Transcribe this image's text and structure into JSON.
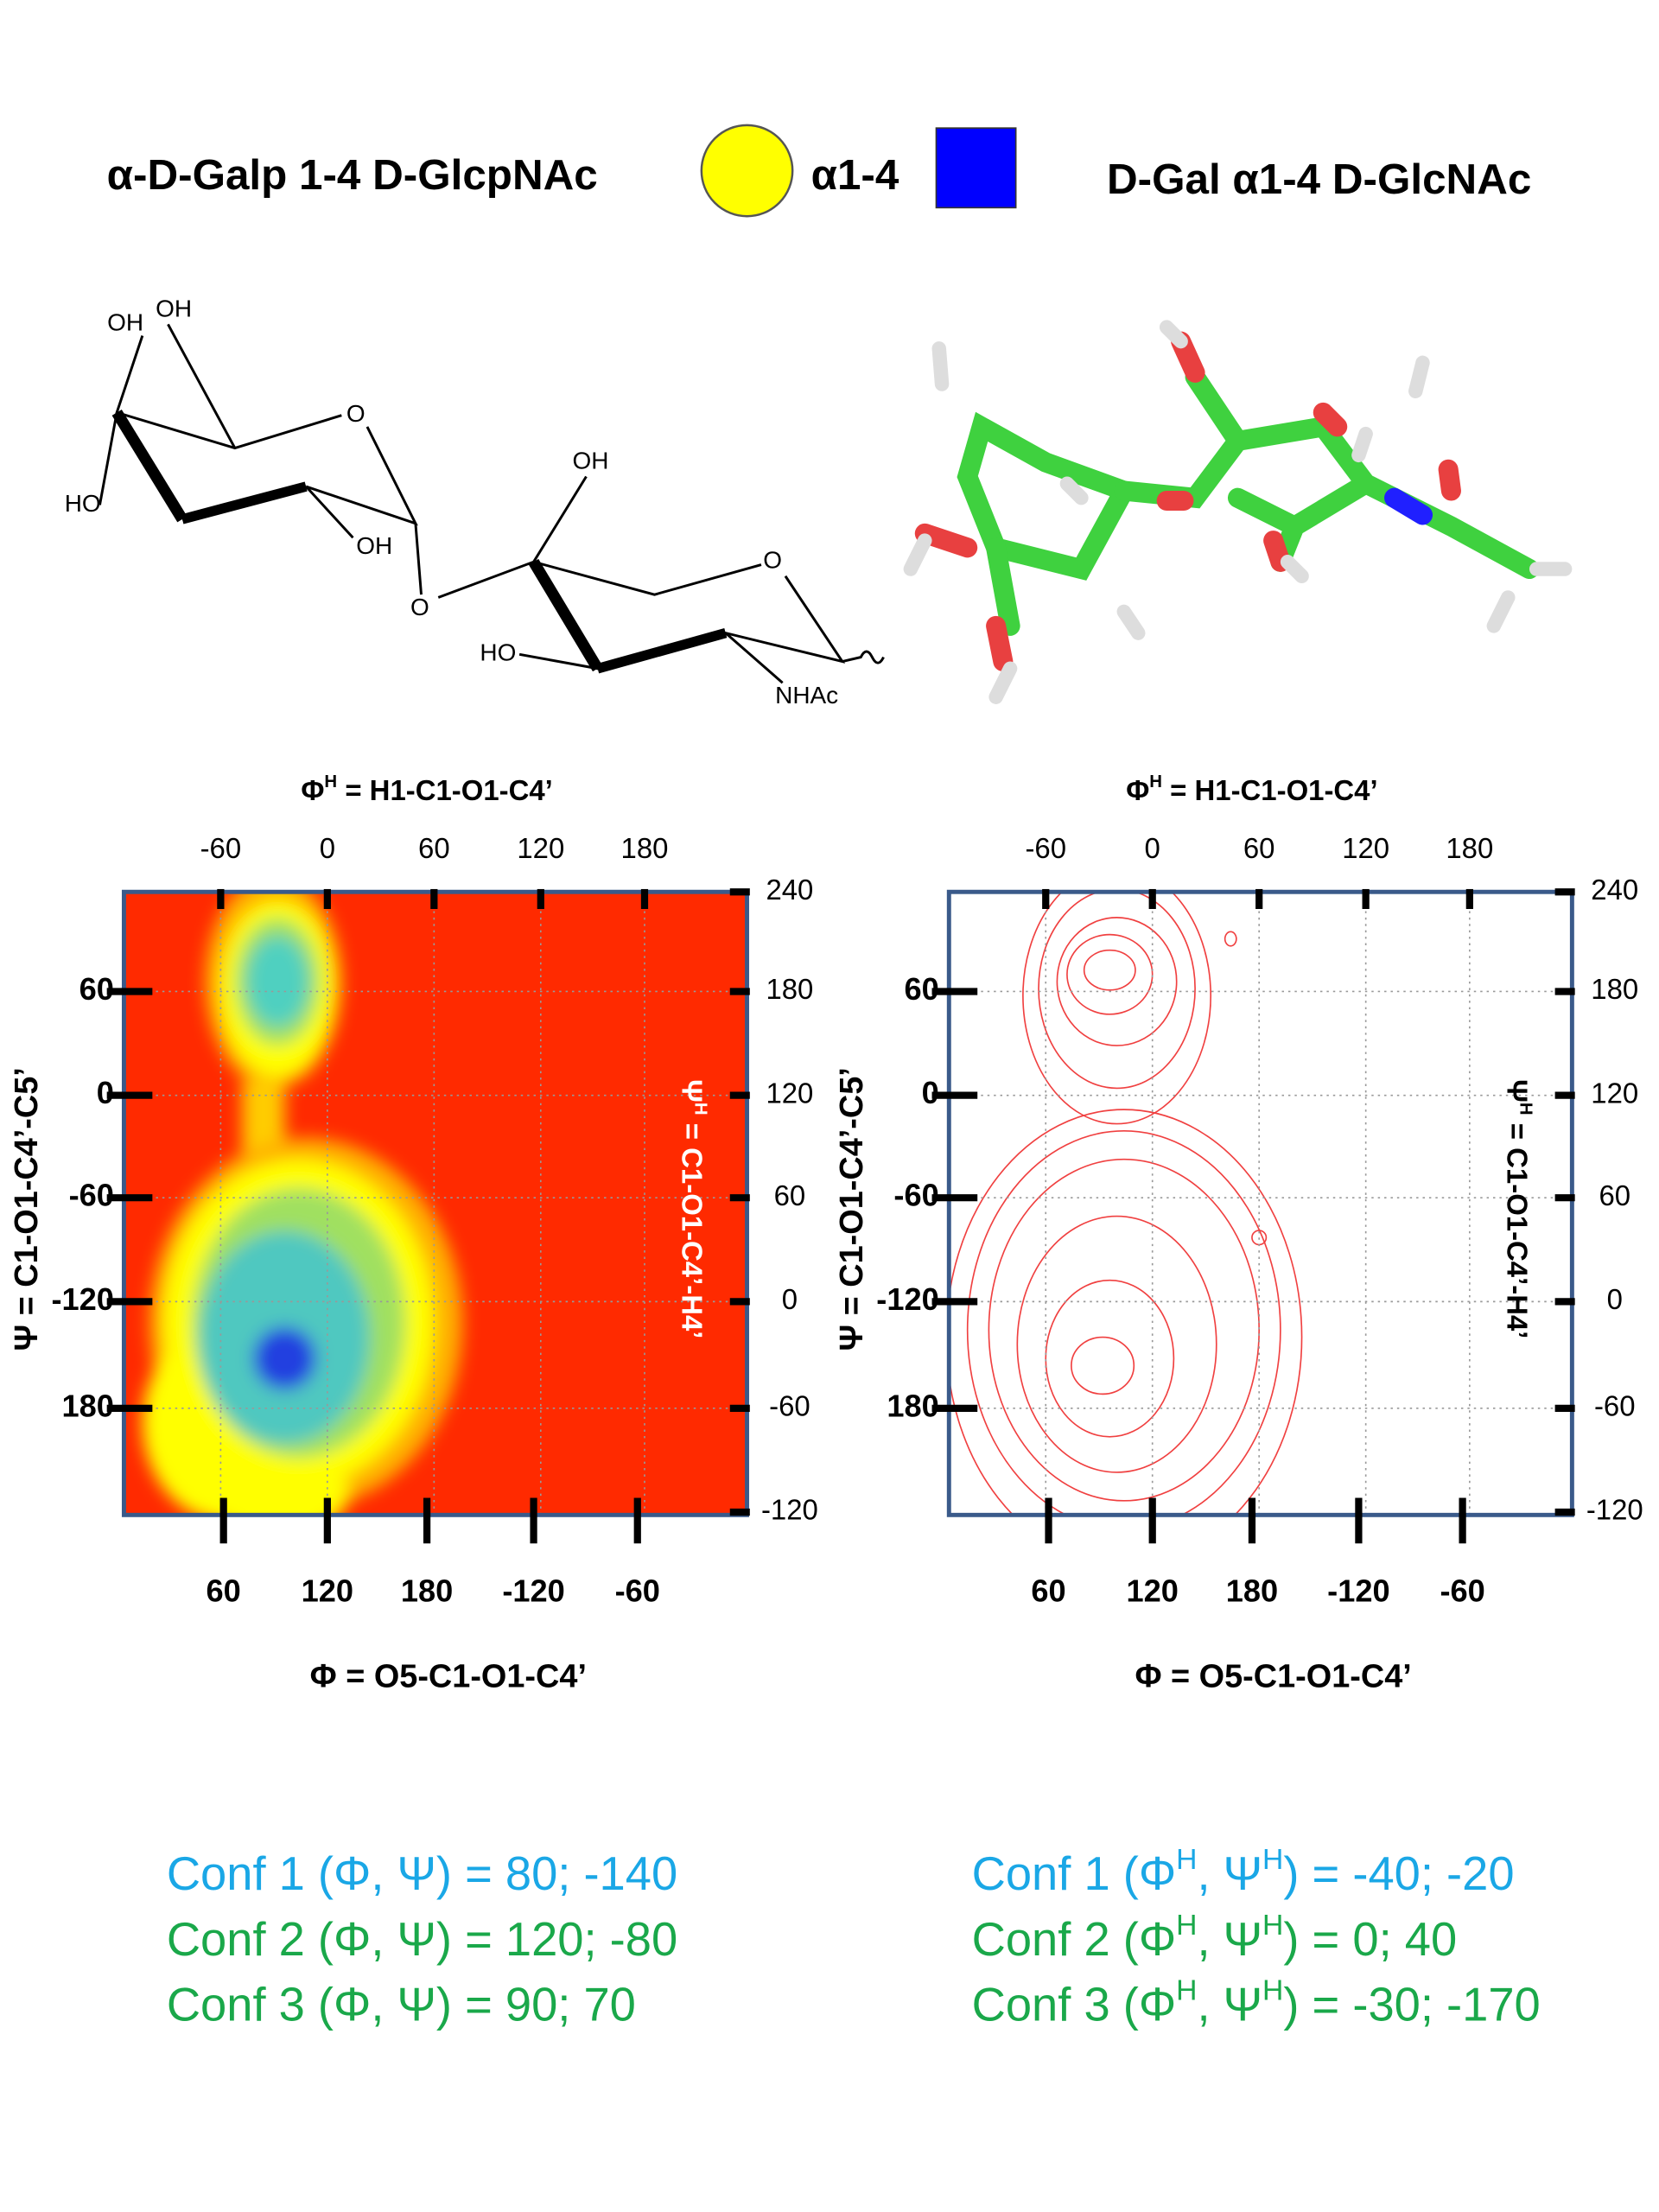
{
  "header": {
    "left": "α-D-Galp 1-4 D-GlcpNAc",
    "linkage": "α1-4",
    "right": "D-Gal α1-4 D-GlcNAc"
  },
  "structure_labels": [
    "OH",
    "OH",
    "O",
    "HO",
    "OH",
    "O",
    "OH",
    "O",
    "HO",
    "NHAc"
  ],
  "plots": [
    {
      "top_axis_label": [
        "Φ",
        "H",
        " = H1-C1-O1-C4’"
      ],
      "top_ticks": [
        "-60",
        "0",
        "60",
        "120",
        "180"
      ],
      "right_ticks": [
        "240",
        "180",
        "120",
        "60",
        "0",
        "-60",
        "-120"
      ],
      "left_ticks": [
        "60",
        "0",
        "-60",
        "-120",
        "180"
      ],
      "bottom_ticks": [
        "60",
        "120",
        "180",
        "-120",
        "-60"
      ],
      "bottom_axis_label": "Φ = O5-C1-O1-C4’",
      "left_axis_label": "Ψ = C1-O1-C4’-C5’",
      "right_axis_label": [
        "Ψ",
        "H",
        " = C1-O1-C4’-H4’"
      ]
    },
    {
      "top_axis_label": [
        "Φ",
        "H",
        " = H1-C1-O1-C4’"
      ],
      "top_ticks": [
        "-60",
        "0",
        "60",
        "120",
        "180"
      ],
      "right_ticks": [
        "240",
        "180",
        "120",
        "60",
        "0",
        "-60",
        "-120"
      ],
      "left_ticks": [
        "60",
        "0",
        "-60",
        "-120",
        "180"
      ],
      "bottom_ticks": [
        "60",
        "120",
        "180",
        "-120",
        "-60"
      ],
      "bottom_axis_label": "Φ = O5-C1-O1-C4’",
      "left_axis_label": "Ψ = C1-O1-C4’-C5’",
      "right_axis_label": [
        "Ψ",
        "H",
        " = C1-O1-C4’-H4’"
      ]
    }
  ],
  "conformations": [
    [
      [
        "Conf 1 (Φ, Ψ) = 80; -140"
      ],
      [
        "Conf 2 (Φ, Ψ) = 120; -80"
      ],
      [
        "Conf 3 (Φ, Ψ) = 90; 70"
      ]
    ],
    [
      [
        "Conf 1 (Φ",
        "H",
        ", Ψ",
        "H",
        ") = -40; -20"
      ],
      [
        "Conf 2 (Φ",
        "H",
        ", Ψ",
        "H",
        ") =  0; 40"
      ],
      [
        "Conf 3 (Φ",
        "H",
        ", Ψ",
        "H",
        ") =  -30; -170"
      ]
    ]
  ]
}
